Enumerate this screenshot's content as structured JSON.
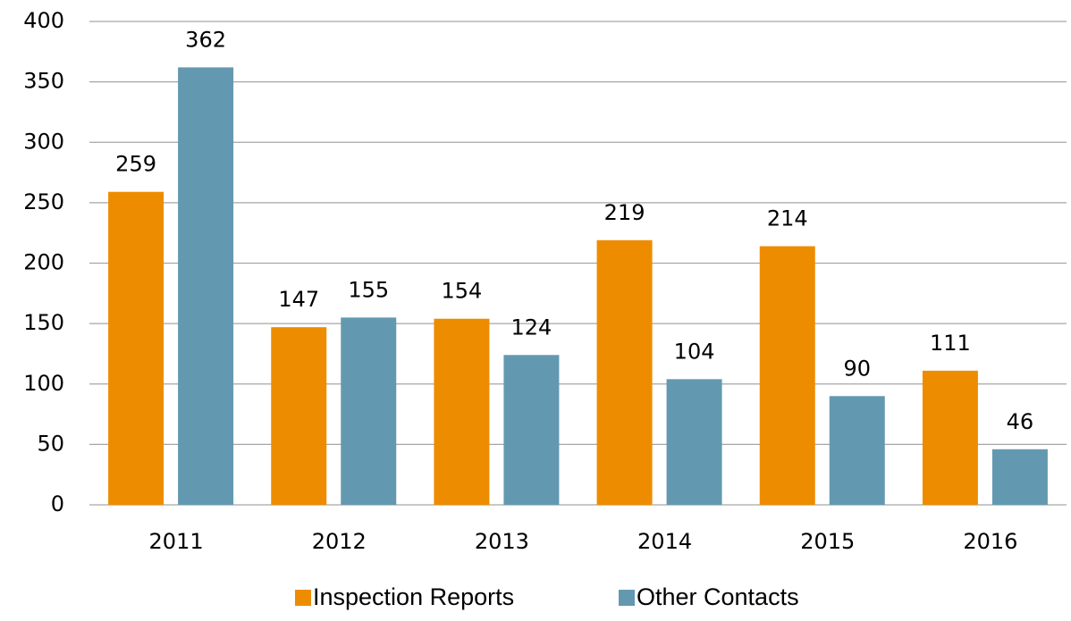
{
  "chart_data": {
    "type": "bar",
    "categories": [
      "2011",
      "2012",
      "2013",
      "2014",
      "2015",
      "2016"
    ],
    "series": [
      {
        "name": "Inspection Reports",
        "color": "#ee8c00",
        "values": [
          259,
          147,
          154,
          219,
          214,
          111
        ]
      },
      {
        "name": "Other Contacts",
        "color": "#6399b0",
        "values": [
          362,
          155,
          124,
          104,
          90,
          46
        ]
      }
    ],
    "ylim": [
      0,
      400
    ],
    "yticks": [
      0,
      50,
      100,
      150,
      200,
      250,
      300,
      350,
      400
    ],
    "grid": true,
    "legend": "bottom"
  }
}
